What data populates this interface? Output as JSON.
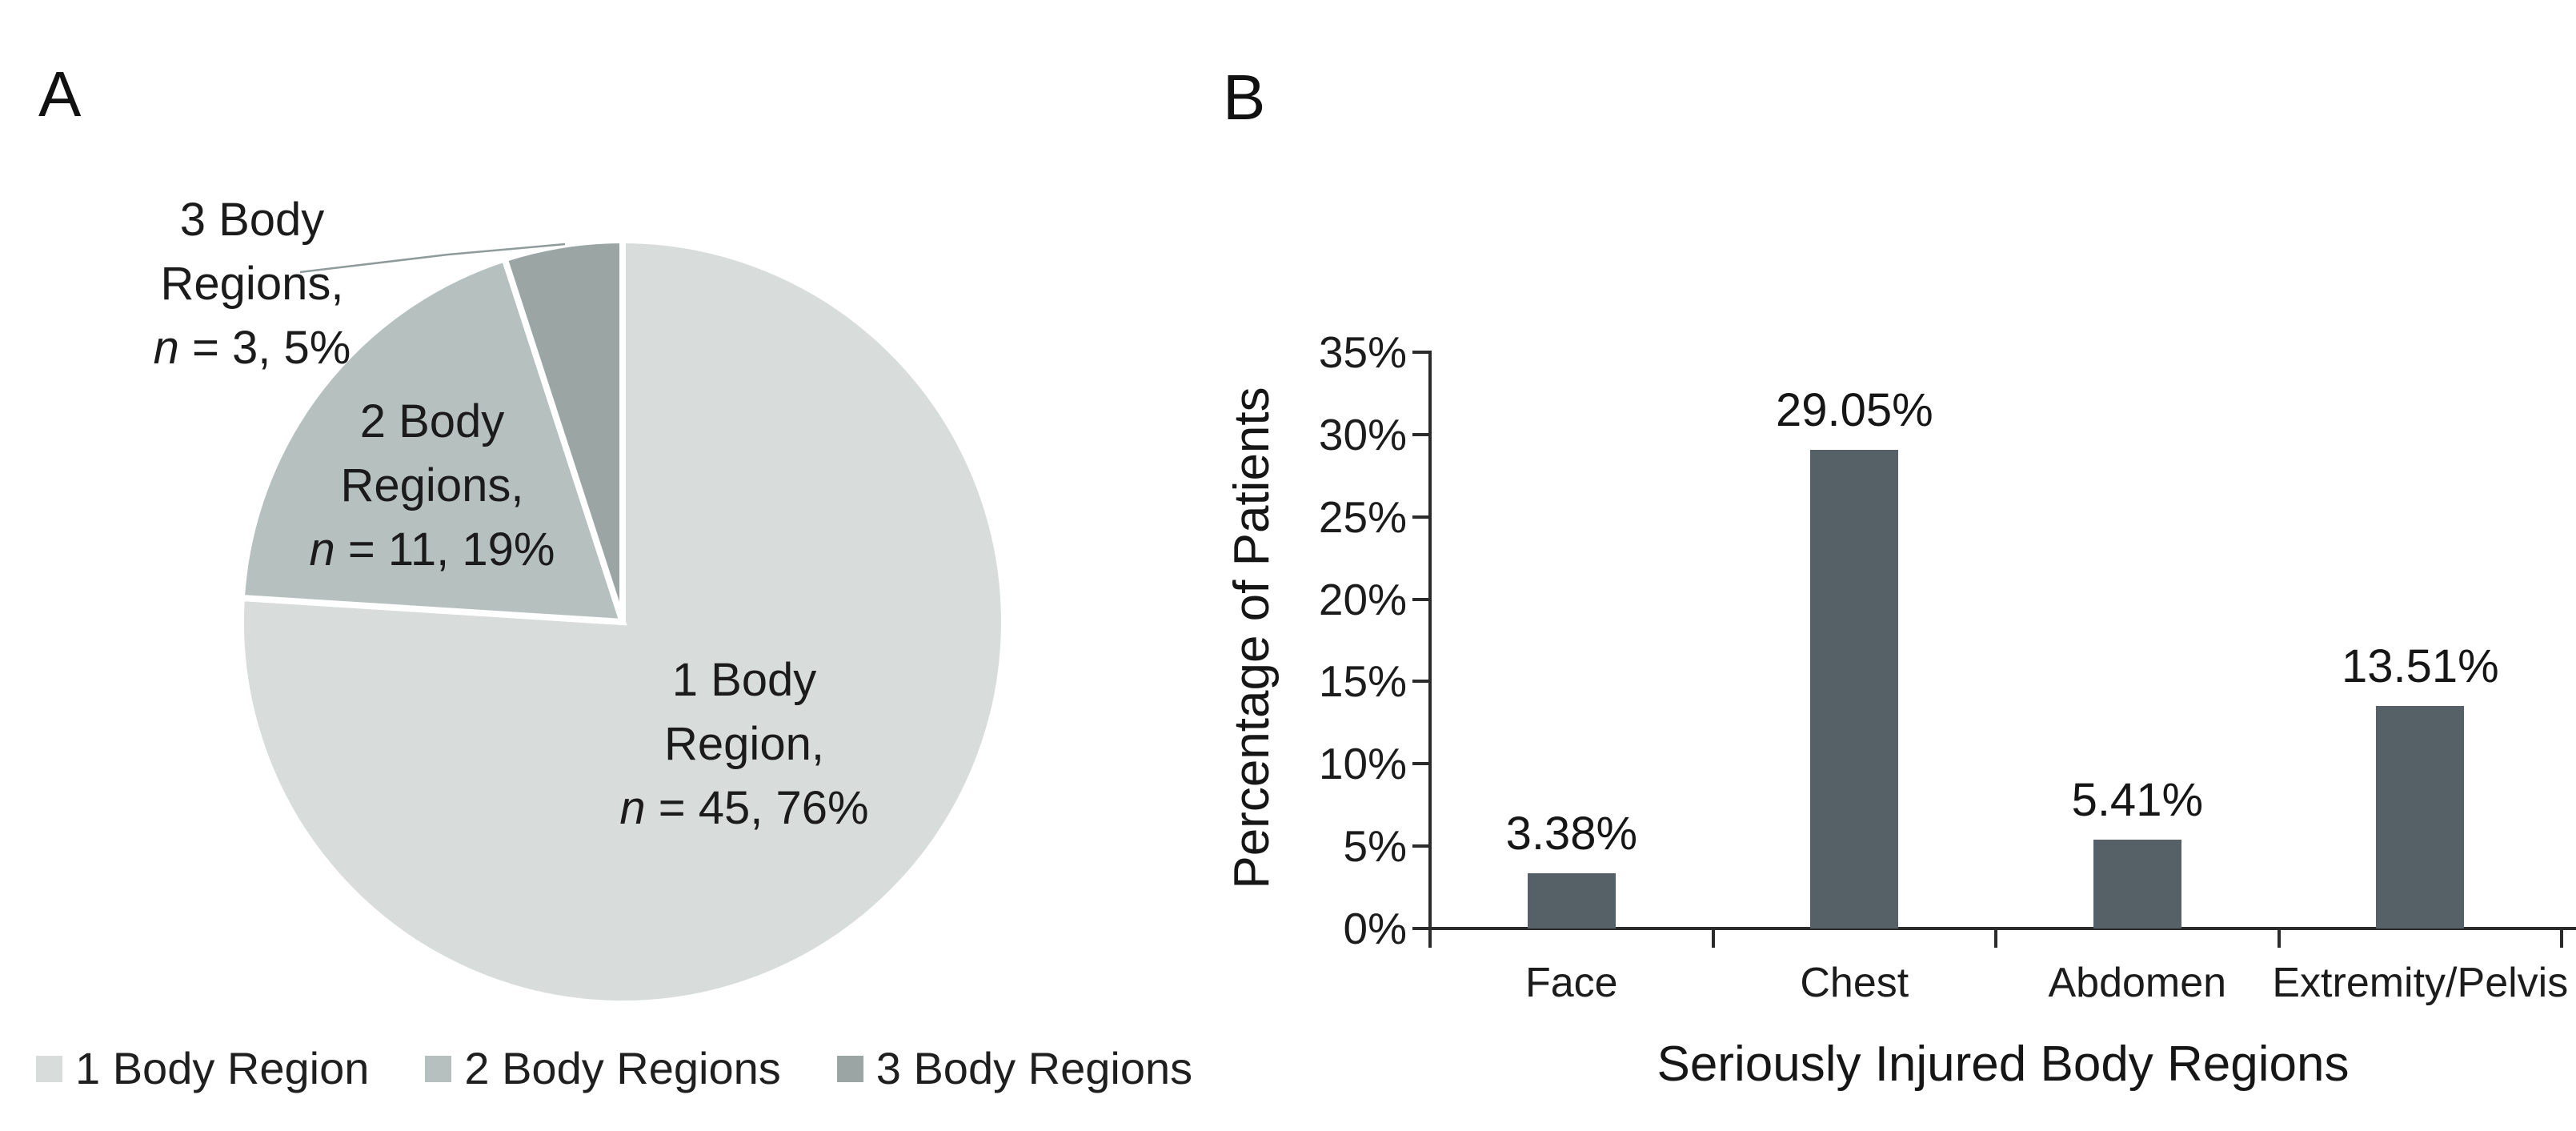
{
  "figure": {
    "panel_a_letter": "A",
    "panel_b_letter": "B"
  },
  "colors": {
    "pie_slice_1": "#d8dddc",
    "pie_slice_2": "#b6c0bf",
    "pie_slice_3": "#9aa5a4",
    "bar_fill": "#556166",
    "axis": "#2b2b2b",
    "text": "#1c1c1c",
    "leader_line": "#8f9b9a"
  },
  "pie": {
    "labels": [
      {
        "line1": "1 Body",
        "line2": "Region,",
        "n": "n",
        "rest": " = 45, 76%"
      },
      {
        "line1": "2 Body",
        "line2": "Regions,",
        "n": "n",
        "rest": " = 11, 19%"
      },
      {
        "line1": "3 Body",
        "line2": "Regions,",
        "n": "n",
        "rest": " = 3, 5%"
      }
    ],
    "legend": [
      {
        "label": "1 Body Region"
      },
      {
        "label": "2 Body Regions"
      },
      {
        "label": "3 Body Regions"
      }
    ]
  },
  "bar": {
    "ylabel": "Percentage of Patients",
    "xlabel": "Seriously Injured Body Regions",
    "ytick_labels": [
      "0%",
      "5%",
      "10%",
      "15%",
      "20%",
      "25%",
      "30%",
      "35%"
    ],
    "categories": [
      "Face",
      "Chest",
      "Abdomen",
      "Extremity/Pelvis"
    ],
    "value_labels": [
      "3.38%",
      "29.05%",
      "5.41%",
      "13.51%"
    ]
  },
  "chart_data": [
    {
      "type": "pie",
      "categories": [
        "1 Body Region",
        "2 Body Regions",
        "3 Body Regions"
      ],
      "values": [
        76,
        19,
        5
      ],
      "counts": [
        45,
        11,
        3
      ],
      "unit": "%",
      "start_angle_deg": 0,
      "direction": "clockwise",
      "legend_position": "bottom",
      "slice_colors": [
        "#d8dddc",
        "#b6c0bf",
        "#9aa5a4"
      ]
    },
    {
      "type": "bar",
      "categories": [
        "Face",
        "Chest",
        "Abdomen",
        "Extremity/Pelvis"
      ],
      "values": [
        3.38,
        29.05,
        5.41,
        13.51
      ],
      "unit": "%",
      "xlabel": "Seriously Injured Body Regions",
      "ylabel": "Percentage of Patients",
      "ylim": [
        0,
        35
      ],
      "ytick_step": 5,
      "grid": false,
      "legend": "none",
      "bar_color": "#556166"
    }
  ]
}
